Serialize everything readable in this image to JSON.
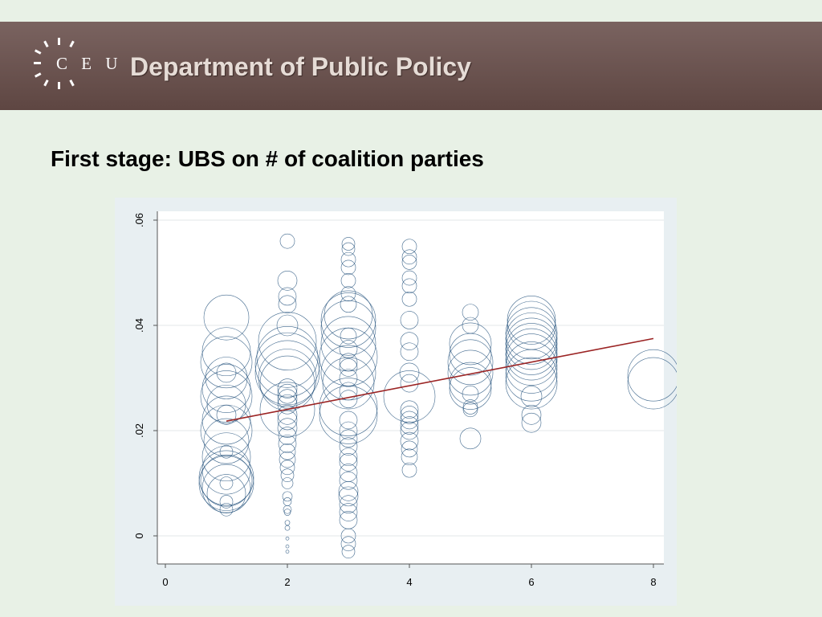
{
  "header": {
    "logo_letters": "C E U",
    "department": "Department of Public Policy",
    "bg_color": "#6e5652"
  },
  "slide": {
    "title": "First stage: UBS on # of coalition parties"
  },
  "chart_data": {
    "type": "scatter",
    "title": "",
    "xlabel": "",
    "ylabel": "",
    "xlim": [
      0,
      8
    ],
    "ylim": [
      -0.005,
      0.061
    ],
    "grid": true,
    "x_ticks": [
      0,
      2,
      4,
      6,
      8
    ],
    "x_tick_labels": [
      "0",
      "2",
      "4",
      "6",
      "8"
    ],
    "y_ticks": [
      0,
      0.02,
      0.04,
      0.06
    ],
    "y_tick_labels": [
      "0",
      ".02",
      ".04",
      ".06"
    ],
    "marker": "hollow circle, size = weight",
    "marker_color": "#1f4e79",
    "fit_line": {
      "x": [
        1,
        8
      ],
      "y": [
        0.0218,
        0.0375
      ],
      "color": "#9b2424"
    },
    "points": [
      {
        "x": 1,
        "y": 0.0415,
        "w": 28
      },
      {
        "x": 1,
        "y": 0.035,
        "w": 30
      },
      {
        "x": 1,
        "y": 0.033,
        "w": 32
      },
      {
        "x": 1,
        "y": 0.031,
        "w": 12
      },
      {
        "x": 1,
        "y": 0.03,
        "w": 26
      },
      {
        "x": 1,
        "y": 0.028,
        "w": 30
      },
      {
        "x": 1,
        "y": 0.0265,
        "w": 32
      },
      {
        "x": 1,
        "y": 0.025,
        "w": 24
      },
      {
        "x": 1,
        "y": 0.023,
        "w": 12
      },
      {
        "x": 1,
        "y": 0.022,
        "w": 30
      },
      {
        "x": 1,
        "y": 0.02,
        "w": 32
      },
      {
        "x": 1,
        "y": 0.018,
        "w": 28
      },
      {
        "x": 1,
        "y": 0.016,
        "w": 8
      },
      {
        "x": 1,
        "y": 0.015,
        "w": 30
      },
      {
        "x": 1,
        "y": 0.0125,
        "w": 30
      },
      {
        "x": 1,
        "y": 0.011,
        "w": 34
      },
      {
        "x": 1,
        "y": 0.0105,
        "w": 32
      },
      {
        "x": 1,
        "y": 0.01,
        "w": 34
      },
      {
        "x": 1,
        "y": 0.01,
        "w": 8
      },
      {
        "x": 1,
        "y": 0.009,
        "w": 30
      },
      {
        "x": 1,
        "y": 0.008,
        "w": 24
      },
      {
        "x": 1,
        "y": 0.0065,
        "w": 8
      },
      {
        "x": 1,
        "y": 0.005,
        "w": 8
      },
      {
        "x": 2,
        "y": 0.056,
        "w": 9
      },
      {
        "x": 2,
        "y": 0.0485,
        "w": 12
      },
      {
        "x": 2,
        "y": 0.0455,
        "w": 11
      },
      {
        "x": 2,
        "y": 0.044,
        "w": 11
      },
      {
        "x": 2,
        "y": 0.04,
        "w": 13
      },
      {
        "x": 2,
        "y": 0.037,
        "w": 36
      },
      {
        "x": 2,
        "y": 0.034,
        "w": 38
      },
      {
        "x": 2,
        "y": 0.0325,
        "w": 40
      },
      {
        "x": 2,
        "y": 0.031,
        "w": 40
      },
      {
        "x": 2,
        "y": 0.03,
        "w": 36
      },
      {
        "x": 2,
        "y": 0.029,
        "w": 34
      },
      {
        "x": 2,
        "y": 0.028,
        "w": 12
      },
      {
        "x": 2,
        "y": 0.027,
        "w": 12
      },
      {
        "x": 2,
        "y": 0.026,
        "w": 12
      },
      {
        "x": 2,
        "y": 0.025,
        "w": 12
      },
      {
        "x": 2,
        "y": 0.024,
        "w": 34
      },
      {
        "x": 2,
        "y": 0.023,
        "w": 12
      },
      {
        "x": 2,
        "y": 0.022,
        "w": 12
      },
      {
        "x": 2,
        "y": 0.0205,
        "w": 12
      },
      {
        "x": 2,
        "y": 0.019,
        "w": 11
      },
      {
        "x": 2,
        "y": 0.0175,
        "w": 11
      },
      {
        "x": 2,
        "y": 0.016,
        "w": 10
      },
      {
        "x": 2,
        "y": 0.0145,
        "w": 10
      },
      {
        "x": 2,
        "y": 0.013,
        "w": 9
      },
      {
        "x": 2,
        "y": 0.0115,
        "w": 8
      },
      {
        "x": 2,
        "y": 0.01,
        "w": 7
      },
      {
        "x": 2,
        "y": 0.0075,
        "w": 6
      },
      {
        "x": 2,
        "y": 0.0065,
        "w": 5
      },
      {
        "x": 2,
        "y": 0.005,
        "w": 5
      },
      {
        "x": 2,
        "y": 0.0045,
        "w": 4
      },
      {
        "x": 2,
        "y": 0.0025,
        "w": 3
      },
      {
        "x": 2,
        "y": 0.0015,
        "w": 3
      },
      {
        "x": 2,
        "y": -0.0005,
        "w": 2
      },
      {
        "x": 2,
        "y": -0.002,
        "w": 2
      },
      {
        "x": 2,
        "y": -0.003,
        "w": 2
      },
      {
        "x": 3,
        "y": 0.0555,
        "w": 8
      },
      {
        "x": 3,
        "y": 0.0545,
        "w": 8
      },
      {
        "x": 3,
        "y": 0.0525,
        "w": 9
      },
      {
        "x": 3,
        "y": 0.051,
        "w": 9
      },
      {
        "x": 3,
        "y": 0.0485,
        "w": 9
      },
      {
        "x": 3,
        "y": 0.046,
        "w": 9
      },
      {
        "x": 3,
        "y": 0.044,
        "w": 10
      },
      {
        "x": 3,
        "y": 0.042,
        "w": 30
      },
      {
        "x": 3,
        "y": 0.041,
        "w": 34
      },
      {
        "x": 3,
        "y": 0.0395,
        "w": 34
      },
      {
        "x": 3,
        "y": 0.038,
        "w": 10
      },
      {
        "x": 3,
        "y": 0.0365,
        "w": 34
      },
      {
        "x": 3,
        "y": 0.0355,
        "w": 11
      },
      {
        "x": 3,
        "y": 0.034,
        "w": 36
      },
      {
        "x": 3,
        "y": 0.033,
        "w": 11
      },
      {
        "x": 3,
        "y": 0.032,
        "w": 11
      },
      {
        "x": 3,
        "y": 0.031,
        "w": 34
      },
      {
        "x": 3,
        "y": 0.03,
        "w": 11
      },
      {
        "x": 3,
        "y": 0.029,
        "w": 32
      },
      {
        "x": 3,
        "y": 0.0275,
        "w": 11
      },
      {
        "x": 3,
        "y": 0.026,
        "w": 11
      },
      {
        "x": 3,
        "y": 0.0245,
        "w": 36
      },
      {
        "x": 3,
        "y": 0.023,
        "w": 36
      },
      {
        "x": 3,
        "y": 0.022,
        "w": 11
      },
      {
        "x": 3,
        "y": 0.02,
        "w": 11
      },
      {
        "x": 3,
        "y": 0.0185,
        "w": 11
      },
      {
        "x": 3,
        "y": 0.017,
        "w": 11
      },
      {
        "x": 3,
        "y": 0.015,
        "w": 11
      },
      {
        "x": 3,
        "y": 0.014,
        "w": 11
      },
      {
        "x": 3,
        "y": 0.012,
        "w": 11
      },
      {
        "x": 3,
        "y": 0.0105,
        "w": 11
      },
      {
        "x": 3,
        "y": 0.0085,
        "w": 12
      },
      {
        "x": 3,
        "y": 0.0075,
        "w": 12
      },
      {
        "x": 3,
        "y": 0.006,
        "w": 11
      },
      {
        "x": 3,
        "y": 0.0045,
        "w": 11
      },
      {
        "x": 3,
        "y": 0.003,
        "w": 11
      },
      {
        "x": 3,
        "y": 0.0,
        "w": 9
      },
      {
        "x": 3,
        "y": -0.0015,
        "w": 9
      },
      {
        "x": 3,
        "y": -0.003,
        "w": 8
      },
      {
        "x": 4,
        "y": 0.055,
        "w": 9
      },
      {
        "x": 4,
        "y": 0.053,
        "w": 9
      },
      {
        "x": 4,
        "y": 0.052,
        "w": 9
      },
      {
        "x": 4,
        "y": 0.049,
        "w": 9
      },
      {
        "x": 4,
        "y": 0.0475,
        "w": 9
      },
      {
        "x": 4,
        "y": 0.045,
        "w": 9
      },
      {
        "x": 4,
        "y": 0.041,
        "w": 11
      },
      {
        "x": 4,
        "y": 0.037,
        "w": 11
      },
      {
        "x": 4,
        "y": 0.035,
        "w": 11
      },
      {
        "x": 4,
        "y": 0.031,
        "w": 12
      },
      {
        "x": 4,
        "y": 0.029,
        "w": 11
      },
      {
        "x": 4,
        "y": 0.0265,
        "w": 32
      },
      {
        "x": 4,
        "y": 0.024,
        "w": 11
      },
      {
        "x": 4,
        "y": 0.023,
        "w": 11
      },
      {
        "x": 4,
        "y": 0.022,
        "w": 11
      },
      {
        "x": 4,
        "y": 0.021,
        "w": 11
      },
      {
        "x": 4,
        "y": 0.02,
        "w": 11
      },
      {
        "x": 4,
        "y": 0.018,
        "w": 11
      },
      {
        "x": 4,
        "y": 0.0165,
        "w": 10
      },
      {
        "x": 4,
        "y": 0.015,
        "w": 10
      },
      {
        "x": 4,
        "y": 0.0125,
        "w": 9
      },
      {
        "x": 5,
        "y": 0.0425,
        "w": 10
      },
      {
        "x": 5,
        "y": 0.04,
        "w": 10
      },
      {
        "x": 5,
        "y": 0.0365,
        "w": 26
      },
      {
        "x": 5,
        "y": 0.0345,
        "w": 26
      },
      {
        "x": 5,
        "y": 0.033,
        "w": 28
      },
      {
        "x": 5,
        "y": 0.031,
        "w": 28
      },
      {
        "x": 5,
        "y": 0.029,
        "w": 26
      },
      {
        "x": 5,
        "y": 0.028,
        "w": 26
      },
      {
        "x": 5,
        "y": 0.027,
        "w": 10
      },
      {
        "x": 5,
        "y": 0.0245,
        "w": 9
      },
      {
        "x": 5,
        "y": 0.024,
        "w": 9
      },
      {
        "x": 5,
        "y": 0.0185,
        "w": 13
      },
      {
        "x": 6,
        "y": 0.041,
        "w": 30
      },
      {
        "x": 6,
        "y": 0.04,
        "w": 30
      },
      {
        "x": 6,
        "y": 0.0385,
        "w": 32
      },
      {
        "x": 6,
        "y": 0.0375,
        "w": 32
      },
      {
        "x": 6,
        "y": 0.0365,
        "w": 32
      },
      {
        "x": 6,
        "y": 0.0355,
        "w": 32
      },
      {
        "x": 6,
        "y": 0.0345,
        "w": 32
      },
      {
        "x": 6,
        "y": 0.0335,
        "w": 32
      },
      {
        "x": 6,
        "y": 0.032,
        "w": 32
      },
      {
        "x": 6,
        "y": 0.0305,
        "w": 32
      },
      {
        "x": 6,
        "y": 0.029,
        "w": 32
      },
      {
        "x": 6,
        "y": 0.0265,
        "w": 13
      },
      {
        "x": 6,
        "y": 0.023,
        "w": 12
      },
      {
        "x": 6,
        "y": 0.0215,
        "w": 12
      },
      {
        "x": 8,
        "y": 0.0305,
        "w": 32
      },
      {
        "x": 8,
        "y": 0.029,
        "w": 32
      }
    ]
  }
}
